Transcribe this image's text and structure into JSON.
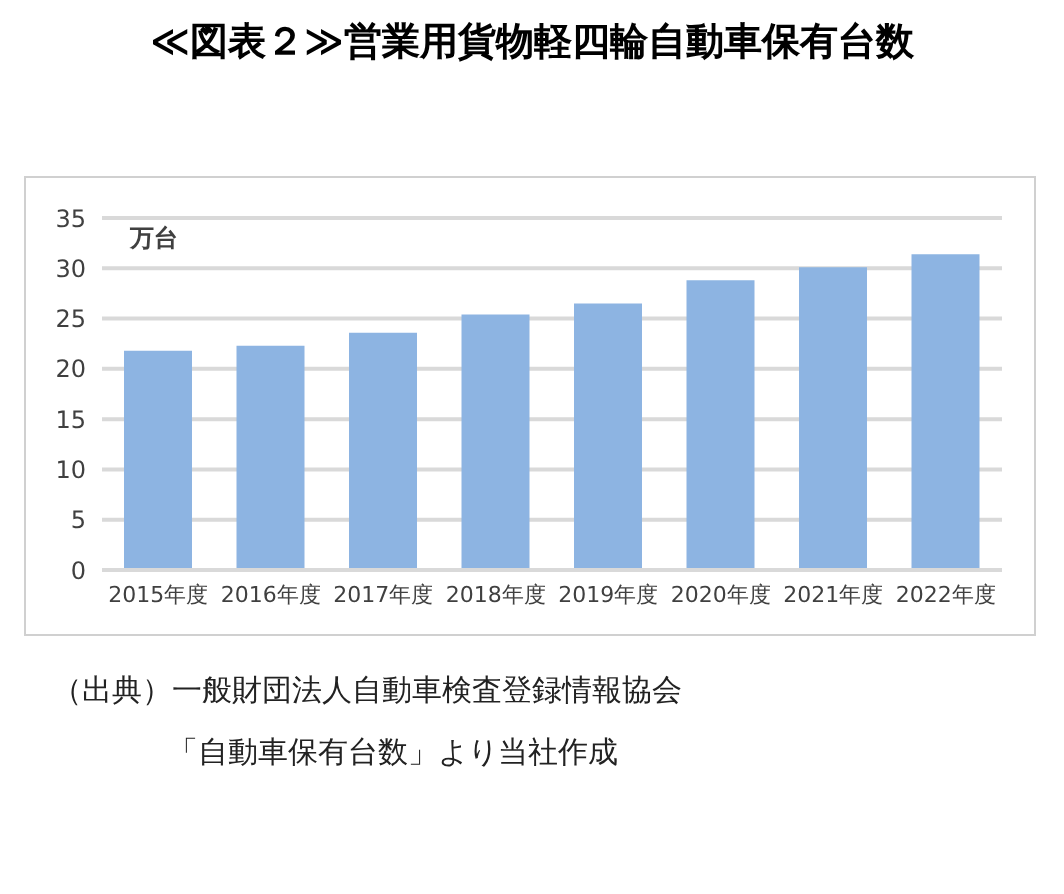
{
  "chart_data": {
    "type": "bar",
    "title": "≪図表２≫営業用貨物軽四輪自動車保有台数",
    "ylabel": "万台",
    "categories": [
      "2015年度",
      "2016年度",
      "2017年度",
      "2018年度",
      "2019年度",
      "2020年度",
      "2021年度",
      "2022年度"
    ],
    "values": [
      21.8,
      22.3,
      23.6,
      25.4,
      26.5,
      28.8,
      30.1,
      31.4
    ],
    "color": "#8db4e2",
    "ylim": [
      0,
      35
    ],
    "yticks": [
      0,
      5,
      10,
      15,
      20,
      25,
      30,
      35
    ],
    "grid": "y",
    "annotations": [
      "（出典）一般財団法人自動車検査登録情報協会",
      "「自動車保有台数」より当社作成"
    ]
  }
}
